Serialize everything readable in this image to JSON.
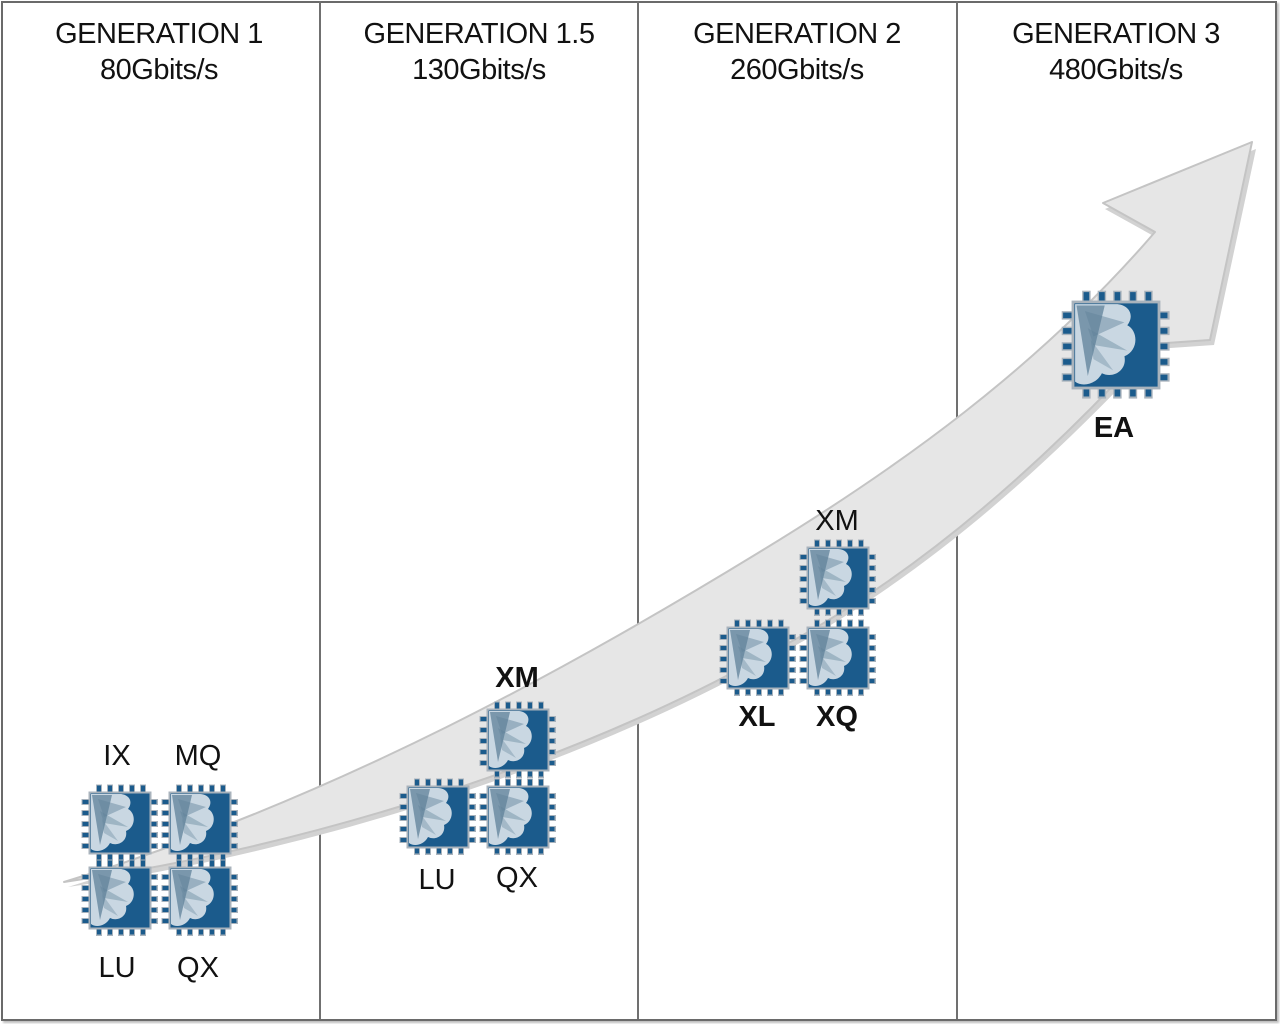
{
  "columns": [
    {
      "title": "GENERATION 1",
      "rate": "80Gbits/s"
    },
    {
      "title": "GENERATION 1.5",
      "rate": "130Gbits/s"
    },
    {
      "title": "GENERATION 2",
      "rate": "260Gbits/s"
    },
    {
      "title": "GENERATION 3",
      "rate": "480Gbits/s"
    }
  ],
  "chips": {
    "gen1": {
      "ix": "IX",
      "mq": "MQ",
      "lu": "LU",
      "qx": "QX"
    },
    "gen15": {
      "xm": "XM",
      "lu": "LU",
      "qx": "QX"
    },
    "gen2": {
      "xm": "XM",
      "xl": "XL",
      "xq": "XQ"
    },
    "gen3": {
      "ea": "EA"
    }
  },
  "colors": {
    "chip_body": "#1b5b8c",
    "chip_border": "#a9b3bc",
    "chip_pin": "#1b5b8c",
    "chip_cloud": "#c9d7e2",
    "arrow_fill": "#e6e6e6",
    "arrow_stroke": "#c4c4c4",
    "divider": "#707070"
  },
  "icons": {
    "chip": "processor-chip-icon",
    "arrow": "growth-arrow-icon"
  }
}
